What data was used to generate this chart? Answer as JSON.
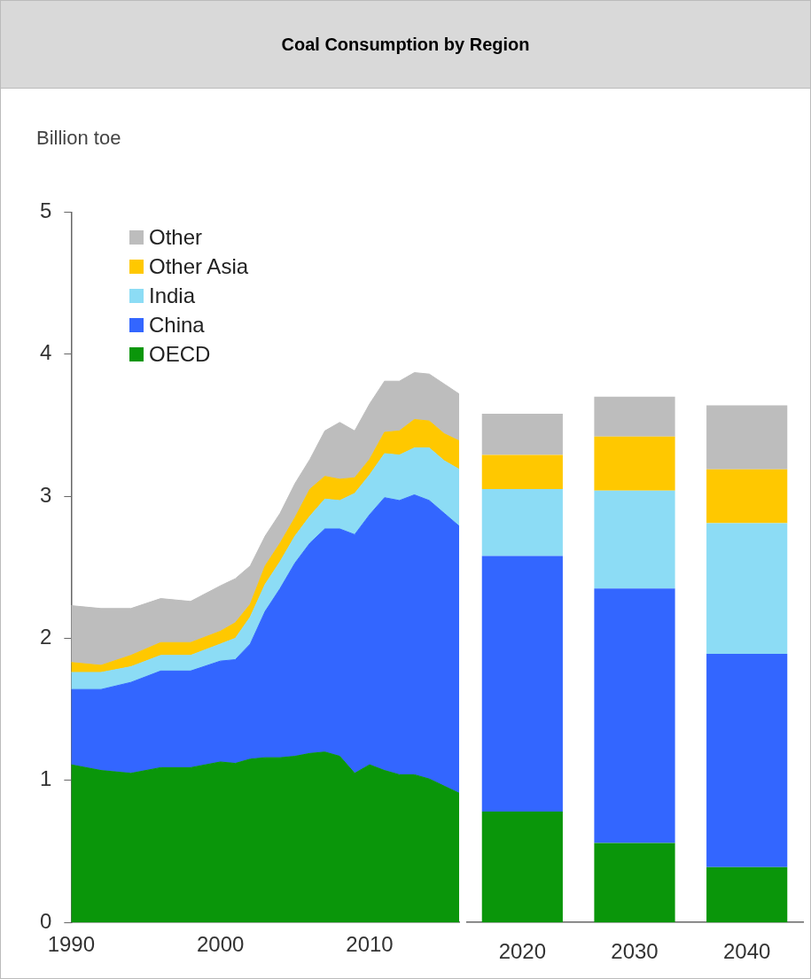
{
  "chart_data": [
    {
      "type": "area",
      "title": "Coal Consumption by Region",
      "ylabel": "Billion toe",
      "stacked": true,
      "legend": "top left",
      "grid": false,
      "xlim": [
        1990,
        2016
      ],
      "xticks": [
        1990,
        2000,
        2010
      ],
      "ylim": [
        0,
        5
      ],
      "yticks": [
        0,
        1,
        2,
        3,
        4,
        5
      ],
      "series": [
        {
          "name": "OECD",
          "color": "#0a960a",
          "x": [
            1990,
            1992,
            1994,
            1996,
            1998,
            2000,
            2001,
            2002,
            2003,
            2004,
            2005,
            2006,
            2007,
            2008,
            2009,
            2010,
            2011,
            2012,
            2013,
            2014,
            2015,
            2016
          ],
          "values": [
            1.11,
            1.07,
            1.05,
            1.09,
            1.09,
            1.13,
            1.12,
            1.15,
            1.16,
            1.16,
            1.17,
            1.19,
            1.2,
            1.17,
            1.05,
            1.11,
            1.07,
            1.04,
            1.04,
            1.01,
            0.96,
            0.91
          ]
        },
        {
          "name": "China",
          "color": "#3366ff",
          "x": [
            1990,
            1992,
            1994,
            1996,
            1998,
            2000,
            2001,
            2002,
            2003,
            2004,
            2005,
            2006,
            2007,
            2008,
            2009,
            2010,
            2011,
            2012,
            2013,
            2014,
            2015,
            2016
          ],
          "values": [
            0.53,
            0.57,
            0.64,
            0.68,
            0.68,
            0.71,
            0.73,
            0.81,
            1.03,
            1.19,
            1.36,
            1.48,
            1.57,
            1.6,
            1.68,
            1.76,
            1.92,
            1.93,
            1.97,
            1.96,
            1.92,
            1.88
          ]
        },
        {
          "name": "India",
          "color": "#8cdcf5",
          "x": [
            1990,
            1992,
            1994,
            1996,
            1998,
            2000,
            2001,
            2002,
            2003,
            2004,
            2005,
            2006,
            2007,
            2008,
            2009,
            2010,
            2011,
            2012,
            2013,
            2014,
            2015,
            2016
          ],
          "values": [
            0.12,
            0.12,
            0.11,
            0.11,
            0.11,
            0.12,
            0.15,
            0.19,
            0.19,
            0.19,
            0.19,
            0.19,
            0.21,
            0.2,
            0.29,
            0.28,
            0.31,
            0.32,
            0.33,
            0.37,
            0.37,
            0.4
          ]
        },
        {
          "name": "Other Asia",
          "color": "#ffc800",
          "x": [
            1990,
            1992,
            1994,
            1996,
            1998,
            2000,
            2001,
            2002,
            2003,
            2004,
            2005,
            2006,
            2007,
            2008,
            2009,
            2010,
            2011,
            2012,
            2013,
            2014,
            2015,
            2016
          ],
          "values": [
            0.07,
            0.05,
            0.08,
            0.09,
            0.09,
            0.09,
            0.11,
            0.09,
            0.13,
            0.13,
            0.13,
            0.19,
            0.16,
            0.15,
            0.11,
            0.11,
            0.15,
            0.17,
            0.2,
            0.19,
            0.19,
            0.2
          ]
        },
        {
          "name": "Other",
          "color": "#bdbdbd",
          "x": [
            1990,
            1992,
            1994,
            1996,
            1998,
            2000,
            2001,
            2002,
            2003,
            2004,
            2005,
            2006,
            2007,
            2008,
            2009,
            2010,
            2011,
            2012,
            2013,
            2014,
            2015,
            2016
          ],
          "values": [
            0.4,
            0.4,
            0.33,
            0.31,
            0.29,
            0.32,
            0.31,
            0.27,
            0.21,
            0.21,
            0.24,
            0.21,
            0.32,
            0.4,
            0.33,
            0.39,
            0.36,
            0.35,
            0.33,
            0.33,
            0.35,
            0.33
          ]
        }
      ]
    },
    {
      "type": "bar",
      "stacked": true,
      "categories": [
        "2020",
        "2030",
        "2040"
      ],
      "ylim": [
        0,
        5
      ],
      "tick_labels": "x",
      "series": [
        {
          "color": "#0a960a",
          "values": [
            0.78,
            0.56,
            0.39
          ]
        },
        {
          "color": "#3366ff",
          "values": [
            1.8,
            1.79,
            1.5
          ]
        },
        {
          "color": "#8cdcf5",
          "values": [
            0.47,
            0.69,
            0.92
          ]
        },
        {
          "color": "#ffc800",
          "values": [
            0.24,
            0.38,
            0.38
          ]
        },
        {
          "color": "#bdbdbd",
          "values": [
            0.29,
            0.28,
            0.45
          ]
        }
      ]
    }
  ]
}
